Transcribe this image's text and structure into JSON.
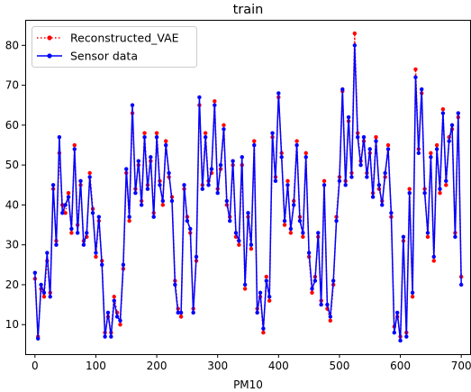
{
  "chart_data": {
    "type": "line",
    "title": "train",
    "xlabel": "PM10",
    "ylabel": "",
    "xlim": [
      -16,
      716
    ],
    "ylim": [
      2.6,
      86.4
    ],
    "xticks": [
      0,
      100,
      200,
      300,
      400,
      500,
      600,
      700
    ],
    "yticks": [
      10,
      20,
      30,
      40,
      50,
      60,
      70,
      80
    ],
    "legend_position": "top-left",
    "grid": false,
    "series": [
      {
        "name": "Reconstructed_VAE",
        "color": "#ff0000",
        "style": "dotted",
        "marker": "circle",
        "x": [
          0,
          5,
          10,
          15,
          20,
          25,
          30,
          35,
          40,
          45,
          50,
          55,
          60,
          65,
          70,
          75,
          80,
          85,
          90,
          95,
          100,
          105,
          110,
          115,
          120,
          125,
          130,
          135,
          140,
          145,
          150,
          155,
          160,
          165,
          170,
          175,
          180,
          185,
          190,
          195,
          200,
          205,
          210,
          215,
          220,
          225,
          230,
          235,
          240,
          245,
          250,
          255,
          260,
          265,
          270,
          275,
          280,
          285,
          290,
          295,
          300,
          305,
          310,
          315,
          320,
          325,
          330,
          335,
          340,
          345,
          350,
          355,
          360,
          365,
          370,
          375,
          380,
          385,
          390,
          395,
          400,
          405,
          410,
          415,
          420,
          425,
          430,
          435,
          440,
          445,
          450,
          455,
          460,
          465,
          470,
          475,
          480,
          485,
          490,
          495,
          500,
          505,
          510,
          515,
          520,
          525,
          530,
          535,
          540,
          545,
          550,
          555,
          560,
          565,
          570,
          575,
          580,
          585,
          590,
          595,
          600,
          605,
          610,
          615,
          620,
          625,
          630,
          635,
          640,
          645,
          650,
          655,
          660,
          665,
          670,
          675,
          680,
          685,
          690,
          695,
          700
        ],
        "values": [
          21.5,
          7,
          19,
          17,
          26,
          18,
          44,
          31,
          53,
          40,
          38,
          43,
          33,
          55,
          35,
          45,
          31,
          32,
          48,
          39,
          27,
          36,
          26,
          8,
          12,
          8,
          17,
          13,
          10,
          24,
          48,
          36,
          63,
          44,
          50,
          41,
          58,
          45,
          51,
          38,
          58,
          46,
          40,
          56,
          47,
          42,
          21,
          14,
          12,
          44,
          37,
          33,
          14,
          26,
          65,
          45,
          58,
          46,
          48,
          66,
          44,
          49,
          60,
          40,
          37,
          50,
          32,
          30,
          50,
          19,
          37,
          29,
          56,
          14,
          17,
          8,
          22,
          16,
          57,
          47,
          67,
          53,
          35,
          46,
          33,
          41,
          56,
          37,
          32,
          53,
          27,
          18,
          22,
          32,
          16,
          46,
          14,
          11,
          20,
          37,
          47,
          68.5,
          46,
          61,
          48,
          83,
          58,
          51,
          56,
          48,
          53,
          43,
          57,
          44,
          41,
          47,
          55,
          37,
          9.5,
          12,
          7,
          31,
          8,
          44,
          17,
          74,
          54,
          68,
          44,
          32,
          53,
          26,
          55,
          43,
          64,
          45,
          57,
          59,
          33,
          62,
          22
        ]
      },
      {
        "name": "Sensor data",
        "color": "#0000ff",
        "style": "solid",
        "marker": "circle",
        "x": [
          0,
          5,
          10,
          15,
          20,
          25,
          30,
          35,
          40,
          45,
          50,
          55,
          60,
          65,
          70,
          75,
          80,
          85,
          90,
          95,
          100,
          105,
          110,
          115,
          120,
          125,
          130,
          135,
          140,
          145,
          150,
          155,
          160,
          165,
          170,
          175,
          180,
          185,
          190,
          195,
          200,
          205,
          210,
          215,
          220,
          225,
          230,
          235,
          240,
          245,
          250,
          255,
          260,
          265,
          270,
          275,
          280,
          285,
          290,
          295,
          300,
          305,
          310,
          315,
          320,
          325,
          330,
          335,
          340,
          345,
          350,
          355,
          360,
          365,
          370,
          375,
          380,
          385,
          390,
          395,
          400,
          405,
          410,
          415,
          420,
          425,
          430,
          435,
          440,
          445,
          450,
          455,
          460,
          465,
          470,
          475,
          480,
          485,
          490,
          495,
          500,
          505,
          510,
          515,
          520,
          525,
          530,
          535,
          540,
          545,
          550,
          555,
          560,
          565,
          570,
          575,
          580,
          585,
          590,
          595,
          600,
          605,
          610,
          615,
          620,
          625,
          630,
          635,
          640,
          645,
          650,
          655,
          660,
          665,
          670,
          675,
          680,
          685,
          690,
          695,
          700
        ],
        "values": [
          23,
          6.5,
          20,
          18,
          28,
          17,
          45,
          30,
          57,
          38,
          40,
          42,
          34,
          54,
          33,
          46,
          30,
          33,
          47,
          38,
          28,
          37,
          25,
          7,
          13,
          7,
          16,
          12,
          11,
          25,
          49,
          37,
          65,
          43,
          51,
          40,
          57,
          44,
          52,
          37,
          57,
          45,
          41,
          55,
          48,
          41,
          20,
          13,
          13,
          45,
          36,
          34,
          13,
          27,
          67,
          44,
          57,
          45,
          49,
          65,
          43,
          50,
          59,
          41,
          36,
          51,
          33,
          31,
          52,
          20,
          38,
          30,
          55,
          13,
          18,
          9,
          21,
          17,
          58,
          46,
          68,
          52,
          36,
          45,
          34,
          40,
          55,
          36,
          33,
          52,
          28,
          19,
          21,
          33,
          15,
          45,
          15,
          12,
          21,
          36,
          46,
          69,
          45,
          62,
          47,
          80,
          57,
          50,
          57,
          47,
          54,
          42,
          56,
          45,
          40,
          48,
          54,
          38,
          8,
          13,
          6,
          32,
          7,
          43,
          18,
          72,
          53,
          69,
          43,
          33,
          52,
          27,
          54,
          44,
          63,
          46,
          56,
          60,
          32,
          63,
          20
        ]
      }
    ]
  }
}
